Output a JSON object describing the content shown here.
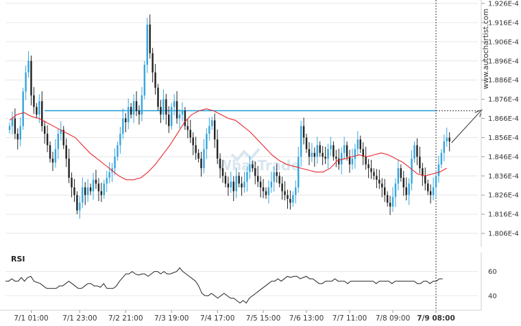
{
  "chart_data": {
    "type": "candlestick",
    "watermark_site": "www.autochartist.com",
    "watermark_logo": "WhatTrade",
    "colors": {
      "bull": "#36a6dd",
      "bear": "#222222",
      "ma": "#e8242a",
      "level": "#2fa3d8",
      "rsi": "#222222",
      "grid": "#e6e6e6",
      "axis_text": "#333333",
      "arrow": "#333333"
    },
    "price_axis": {
      "ylim": [
        0.0001801,
        0.0001926
      ],
      "ticks": [
        "1.926E-4",
        "1.916E-4",
        "1.906E-4",
        "1.896E-4",
        "1.886E-4",
        "1.876E-4",
        "1.866E-4",
        "1.856E-4",
        "1.846E-4",
        "1.836E-4",
        "1.826E-4",
        "1.816E-4",
        "1.806E-4"
      ],
      "tick_values": [
        1.926,
        1.916,
        1.906,
        1.896,
        1.886,
        1.876,
        1.866,
        1.856,
        1.846,
        1.836,
        1.826,
        1.816,
        1.806
      ]
    },
    "x_axis": {
      "tick_labels": [
        "7/1 01:00",
        "7/1 23:00",
        "7/2 21:00",
        "7/3 19:00",
        "7/4 17:00",
        "7/5 15:00",
        "7/6 13:00",
        "7/7 11:00",
        "7/8 09:00",
        "7/9 08:00"
      ],
      "tick_index": [
        8,
        26,
        43,
        60,
        77,
        94,
        110,
        126,
        142,
        158
      ],
      "highlight": "7/9 08:00",
      "bars": 162
    },
    "resistance_level": 1.87,
    "resistance_start_index": 13,
    "forecast_target_index": 175,
    "forecast_target_price": 1.8705,
    "series_values_scale": "E-4",
    "candles_close": [
      1.862,
      1.866,
      1.858,
      1.855,
      1.862,
      1.88,
      1.89,
      1.896,
      1.878,
      1.872,
      1.868,
      1.875,
      1.862,
      1.858,
      1.852,
      1.845,
      1.843,
      1.85,
      1.858,
      1.86,
      1.852,
      1.845,
      1.835,
      1.83,
      1.826,
      1.818,
      1.822,
      1.83,
      1.826,
      1.83,
      1.828,
      1.834,
      1.832,
      1.828,
      1.826,
      1.832,
      1.835,
      1.838,
      1.84,
      1.846,
      1.852,
      1.858,
      1.866,
      1.864,
      1.872,
      1.868,
      1.875,
      1.87,
      1.868,
      1.878,
      1.894,
      1.915,
      1.9,
      1.89,
      1.882,
      1.872,
      1.868,
      1.876,
      1.868,
      1.862,
      1.872,
      1.875,
      1.866,
      1.868,
      1.87,
      1.862,
      1.86,
      1.856,
      1.852,
      1.848,
      1.845,
      1.84,
      1.85,
      1.858,
      1.862,
      1.865,
      1.855,
      1.845,
      1.84,
      1.836,
      1.832,
      1.83,
      1.833,
      1.828,
      1.836,
      1.832,
      1.83,
      1.833,
      1.838,
      1.842,
      1.84,
      1.836,
      1.833,
      1.83,
      1.828,
      1.826,
      1.83,
      1.833,
      1.838,
      1.836,
      1.832,
      1.828,
      1.826,
      1.824,
      1.822,
      1.826,
      1.83,
      1.846,
      1.862,
      1.856,
      1.85,
      1.846,
      1.848,
      1.846,
      1.852,
      1.848,
      1.846,
      1.845,
      1.85,
      1.852,
      1.846,
      1.845,
      1.842,
      1.848,
      1.852,
      1.846,
      1.842,
      1.845,
      1.85,
      1.855,
      1.85,
      1.846,
      1.842,
      1.84,
      1.838,
      1.836,
      1.834,
      1.832,
      1.83,
      1.826,
      1.822,
      1.82,
      1.825,
      1.832,
      1.84,
      1.835,
      1.83,
      1.826,
      1.832,
      1.845,
      1.852,
      1.846,
      1.84,
      1.836,
      1.832,
      1.828,
      1.826,
      1.83,
      1.836,
      1.842,
      1.848,
      1.854,
      1.856,
      1.854
    ],
    "ma_values": [
      1.865,
      1.868,
      1.869,
      1.867,
      1.866,
      1.864,
      1.862,
      1.86,
      1.858,
      1.856,
      1.852,
      1.848,
      1.845,
      1.842,
      1.839,
      1.836,
      1.834,
      1.834,
      1.835,
      1.838,
      1.842,
      1.847,
      1.852,
      1.858,
      1.864,
      1.868,
      1.87,
      1.871,
      1.87,
      1.868,
      1.866,
      1.865,
      1.862,
      1.859,
      1.855,
      1.851,
      1.847,
      1.844,
      1.842,
      1.841,
      1.84,
      1.839,
      1.838,
      1.838,
      1.84,
      1.844,
      1.845,
      1.846,
      1.847,
      1.846,
      1.847,
      1.848,
      1.847,
      1.845,
      1.843,
      1.84,
      1.837,
      1.836,
      1.837,
      1.838,
      1.84
    ],
    "ma_start_index": 0,
    "ma_step": 2.7,
    "rsi": {
      "label": "RSI",
      "ticks": [
        "60",
        "40"
      ],
      "tick_values": [
        60,
        40
      ],
      "ylim": [
        32,
        66
      ],
      "values": [
        52,
        52,
        54,
        52,
        52,
        55,
        52,
        55,
        56,
        52,
        51,
        50,
        48,
        46,
        46,
        46,
        46,
        48,
        48,
        50,
        52,
        50,
        48,
        46,
        46,
        48,
        50,
        50,
        48,
        48,
        47,
        50,
        46,
        46,
        46,
        48,
        52,
        55,
        58,
        58,
        60,
        58,
        57,
        58,
        58,
        56,
        58,
        60,
        60,
        58,
        60,
        58,
        58,
        59,
        60,
        63,
        60,
        58,
        56,
        54,
        52,
        48,
        42,
        40,
        40,
        42,
        40,
        38,
        40,
        42,
        40,
        38,
        38,
        36,
        34,
        36,
        34,
        38,
        40,
        42,
        44,
        46,
        48,
        50,
        52,
        52,
        54,
        52,
        54,
        56,
        55,
        56,
        56,
        54,
        55,
        56,
        54,
        54,
        52,
        50,
        50,
        52,
        52,
        52,
        54,
        52,
        52,
        52,
        50,
        52,
        52,
        52,
        52,
        52,
        52,
        52,
        52,
        50,
        52,
        52,
        52,
        52,
        50,
        52,
        52,
        52,
        52,
        52,
        52,
        52,
        50,
        50,
        52,
        52,
        50,
        52,
        52,
        54,
        54
      ]
    }
  }
}
